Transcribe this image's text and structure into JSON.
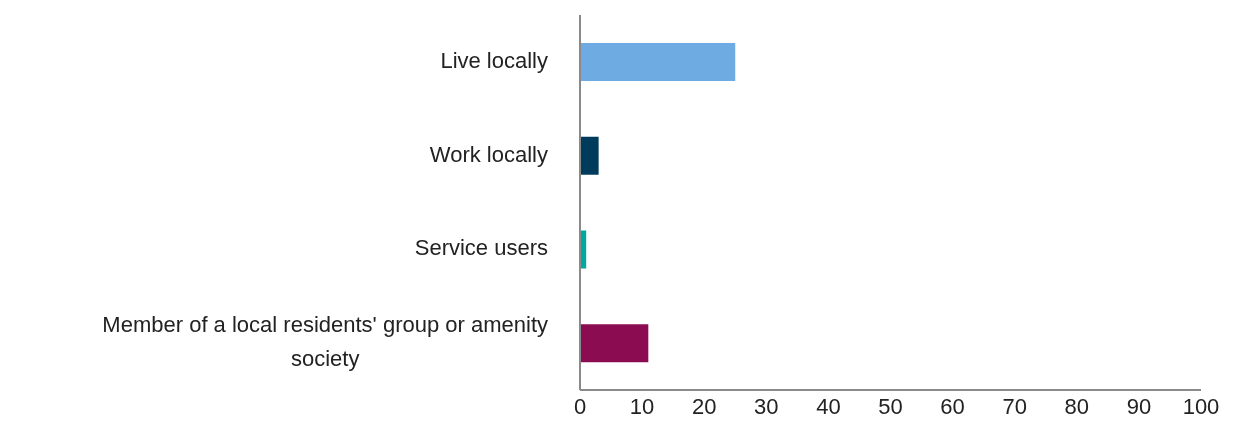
{
  "chart_data": {
    "type": "bar",
    "orientation": "horizontal",
    "categories": [
      "Live locally",
      "Work locally",
      "Service users",
      "Member of a local residents' group or amenity society"
    ],
    "values": [
      25,
      3,
      1,
      11
    ],
    "colors": [
      "#6fabe3",
      "#003b5c",
      "#00a9a0",
      "#8b0c50"
    ],
    "xlim": [
      0,
      100
    ],
    "xticks": [
      0,
      10,
      20,
      30,
      40,
      50,
      60,
      70,
      80,
      90,
      100
    ],
    "grid": false,
    "legend": false
  }
}
